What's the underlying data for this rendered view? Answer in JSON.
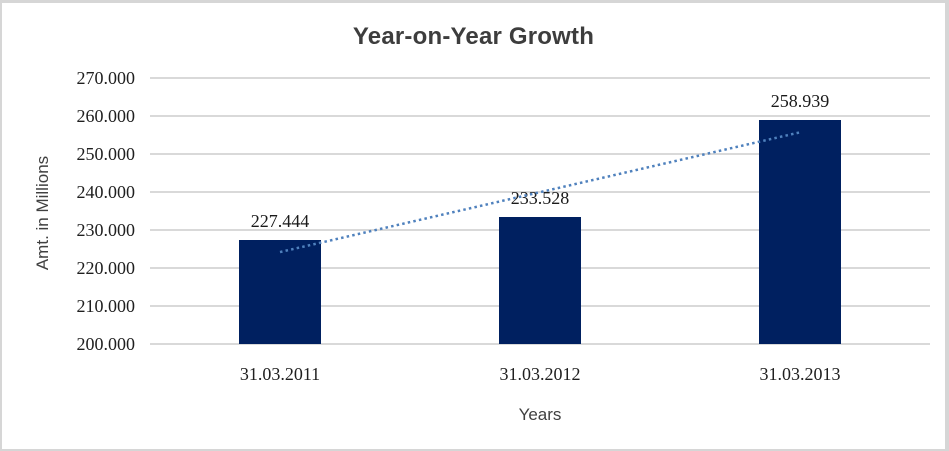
{
  "window": {
    "background": "#ffffff",
    "border_color": "#d6d6d6"
  },
  "chart_data": {
    "type": "bar",
    "title": "Year-on-Year Growth",
    "xlabel": "Years",
    "ylabel": "Amt. in Millions",
    "categories": [
      "31.03.2011",
      "31.03.2012",
      "31.03.2013"
    ],
    "values": [
      227.444,
      233.528,
      258.939
    ],
    "value_labels": [
      "227.444",
      "233.528",
      "258.939"
    ],
    "y_ticks": [
      "270.000",
      "260.000",
      "250.000",
      "240.000",
      "230.000",
      "220.000",
      "210.000",
      "200.000"
    ],
    "ylim": [
      200,
      270
    ],
    "grid": "horizontal",
    "legend": "none",
    "bar_color": "#002060",
    "gridline_color": "#d9d9d9",
    "trendline": {
      "type": "linear",
      "style": "dotted",
      "color": "#4f81bd",
      "y_start": 224.2,
      "y_end": 255.7
    }
  }
}
